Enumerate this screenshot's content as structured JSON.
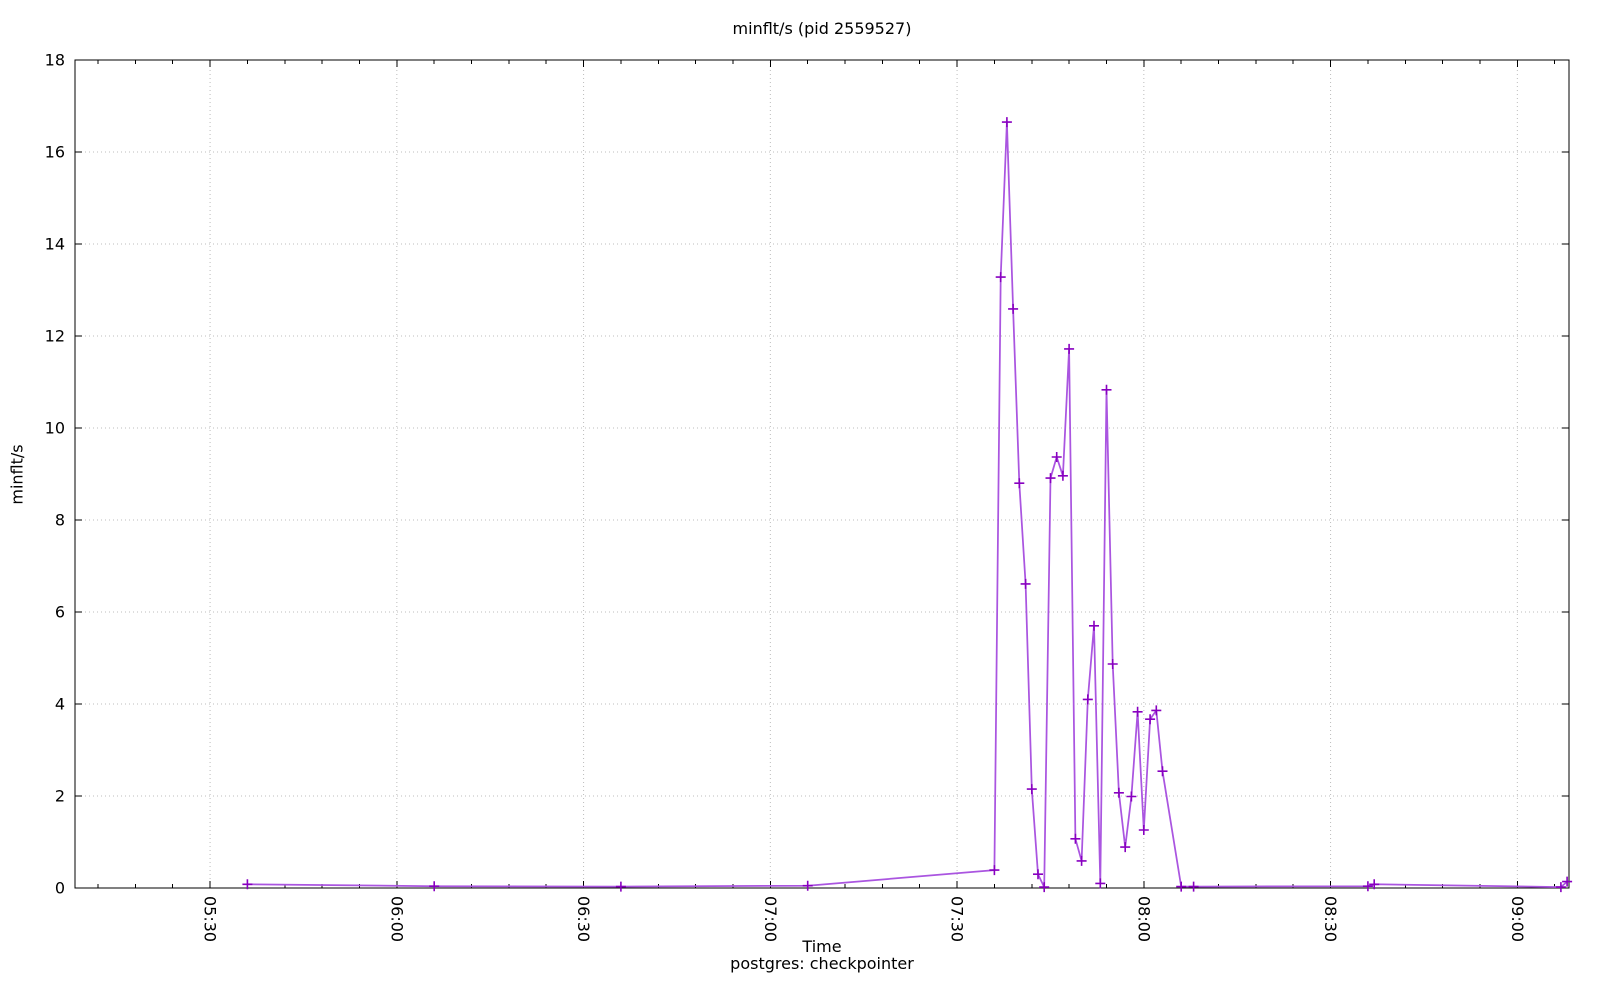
{
  "chart_data": {
    "type": "line",
    "title": "minflt/s (pid 2559527)",
    "xlabel": "Time",
    "ylabel": "minflt/s",
    "series_label": "postgres: checkpointer",
    "legend_position": "bottom-center",
    "grid": "dotted",
    "marker": "plus",
    "colors": {
      "line": "#aa55e0",
      "marker": "#8800c0",
      "grid": "#bcbcbc",
      "axis": "#000000",
      "background": "#ffffff"
    },
    "x_axis": {
      "tick_labels": [
        "05:30",
        "06:00",
        "06:30",
        "07:00",
        "07:30",
        "08:00",
        "08:30",
        "09:00"
      ],
      "minor_tick_interval_minutes": 6,
      "range_minutes_since_midnight": [
        308.3,
        548.3
      ],
      "label_rotation_deg": 90
    },
    "y_axis": {
      "min": 0,
      "max": 18,
      "tick_step": 2,
      "tick_labels": [
        "0",
        "2",
        "4",
        "6",
        "8",
        "10",
        "12",
        "14",
        "16",
        "18"
      ]
    },
    "series": [
      {
        "name": "postgres: checkpointer",
        "points": [
          [
            "05:36",
            0.08
          ],
          [
            "06:06",
            0.04
          ],
          [
            "06:36",
            0.03
          ],
          [
            "07:06",
            0.05
          ],
          [
            "07:36",
            0.39
          ],
          [
            "07:37",
            13.28
          ],
          [
            "07:38",
            16.65
          ],
          [
            "07:39",
            12.59
          ],
          [
            "07:40",
            8.8
          ],
          [
            "07:41",
            6.61
          ],
          [
            "07:42",
            2.15
          ],
          [
            "07:43",
            0.3
          ],
          [
            "07:44",
            0.02
          ],
          [
            "07:45",
            8.91
          ],
          [
            "07:46",
            9.37
          ],
          [
            "07:47",
            8.96
          ],
          [
            "07:48",
            11.72
          ],
          [
            "07:49",
            1.07
          ],
          [
            "07:50",
            0.59
          ],
          [
            "07:51",
            4.1
          ],
          [
            "07:52",
            5.7
          ],
          [
            "07:53",
            0.1
          ],
          [
            "07:54",
            10.83
          ],
          [
            "07:55",
            4.87
          ],
          [
            "07:56",
            2.07
          ],
          [
            "07:57",
            0.89
          ],
          [
            "07:58",
            1.99
          ],
          [
            "07:59",
            3.83
          ],
          [
            "08:00",
            1.26
          ],
          [
            "08:01",
            3.67
          ],
          [
            "08:02",
            3.86
          ],
          [
            "08:03",
            2.54
          ],
          [
            "08:06",
            0.03
          ],
          [
            "08:08",
            0.03
          ],
          [
            "08:36",
            0.04
          ],
          [
            "08:37",
            0.08
          ],
          [
            "09:07",
            0.02
          ],
          [
            "09:08",
            0.14
          ]
        ]
      }
    ]
  }
}
